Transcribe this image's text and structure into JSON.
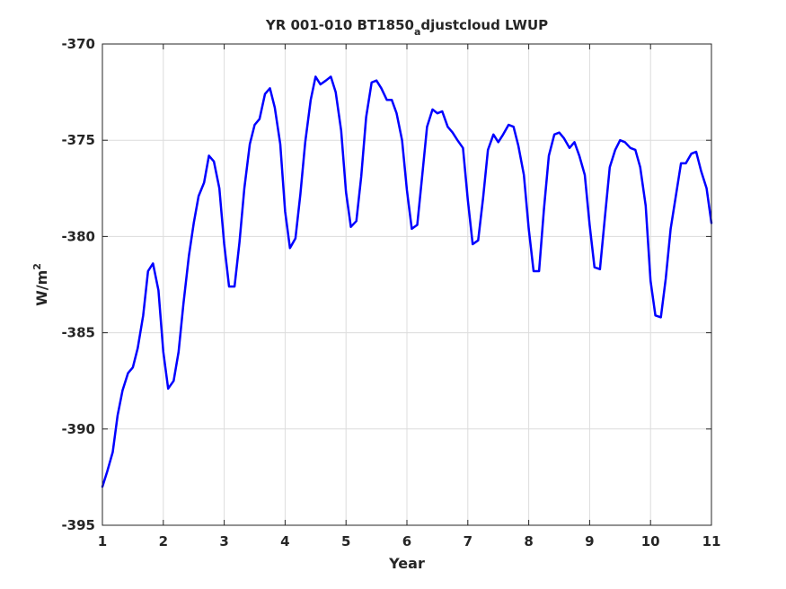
{
  "chart_data": {
    "type": "line",
    "title_main": "YR 001-010 BT1850",
    "title_sub": "a",
    "title_rest": "djustcloud LWUP",
    "xlabel": "Year",
    "ylabel_base": "W/m",
    "ylabel_sup": "2",
    "xlim": [
      1,
      11
    ],
    "ylim": [
      -395,
      -370
    ],
    "xticks": [
      1,
      2,
      3,
      4,
      5,
      6,
      7,
      8,
      9,
      10,
      11
    ],
    "yticks": [
      -395,
      -390,
      -385,
      -380,
      -375,
      -370
    ],
    "grid": true,
    "series": [
      {
        "color": "#0000ff",
        "x": [
          1.0,
          1.08,
          1.17,
          1.25,
          1.33,
          1.42,
          1.5,
          1.58,
          1.67,
          1.75,
          1.83,
          1.92,
          2.0,
          2.08,
          2.17,
          2.25,
          2.33,
          2.42,
          2.5,
          2.58,
          2.67,
          2.75,
          2.83,
          2.92,
          3.0,
          3.08,
          3.17,
          3.25,
          3.33,
          3.42,
          3.5,
          3.58,
          3.67,
          3.75,
          3.83,
          3.92,
          4.0,
          4.08,
          4.17,
          4.25,
          4.33,
          4.42,
          4.5,
          4.58,
          4.67,
          4.75,
          4.83,
          4.92,
          5.0,
          5.08,
          5.17,
          5.25,
          5.33,
          5.42,
          5.5,
          5.58,
          5.67,
          5.75,
          5.83,
          5.92,
          6.0,
          6.08,
          6.17,
          6.25,
          6.33,
          6.42,
          6.5,
          6.58,
          6.67,
          6.75,
          6.83,
          6.92,
          7.0,
          7.08,
          7.17,
          7.25,
          7.33,
          7.42,
          7.5,
          7.58,
          7.67,
          7.75,
          7.83,
          7.92,
          8.0,
          8.08,
          8.17,
          8.25,
          8.33,
          8.42,
          8.5,
          8.58,
          8.67,
          8.75,
          8.83,
          8.92,
          9.0,
          9.08,
          9.17,
          9.25,
          9.33,
          9.42,
          9.5,
          9.58,
          9.67,
          9.75,
          9.83,
          9.92,
          10.0,
          10.08,
          10.17,
          10.25,
          10.33,
          10.42,
          10.5,
          10.58,
          10.67,
          10.75,
          10.83,
          10.92,
          11.0
        ],
        "y": [
          -393.0,
          -392.2,
          -391.2,
          -389.3,
          -388.0,
          -387.1,
          -386.8,
          -385.8,
          -384.1,
          -381.8,
          -381.4,
          -382.8,
          -386.0,
          -387.9,
          -387.5,
          -386.0,
          -383.5,
          -381.0,
          -379.3,
          -377.9,
          -377.2,
          -375.8,
          -376.1,
          -377.5,
          -380.4,
          -382.6,
          -382.6,
          -380.3,
          -377.5,
          -375.2,
          -374.2,
          -373.9,
          -372.6,
          -372.3,
          -373.3,
          -375.2,
          -378.7,
          -380.6,
          -380.1,
          -377.8,
          -375.1,
          -372.9,
          -371.7,
          -372.1,
          -371.9,
          -371.7,
          -372.5,
          -374.5,
          -377.7,
          -379.5,
          -379.2,
          -376.9,
          -373.8,
          -372.0,
          -371.9,
          -372.3,
          -372.9,
          -372.9,
          -373.6,
          -375.0,
          -377.6,
          -379.6,
          -379.4,
          -376.9,
          -374.3,
          -373.4,
          -373.6,
          -373.5,
          -374.3,
          -374.6,
          -375.0,
          -375.4,
          -378.1,
          -380.4,
          -380.2,
          -378.0,
          -375.5,
          -374.7,
          -375.1,
          -374.7,
          -374.2,
          -374.3,
          -375.3,
          -376.8,
          -379.6,
          -381.8,
          -381.8,
          -378.6,
          -375.8,
          -374.7,
          -374.6,
          -374.9,
          -375.4,
          -375.1,
          -375.8,
          -376.8,
          -379.4,
          -381.6,
          -381.7,
          -379.0,
          -376.4,
          -375.5,
          -375.0,
          -375.1,
          -375.4,
          -375.5,
          -376.4,
          -378.4,
          -382.3,
          -384.1,
          -384.2,
          -382.2,
          -379.6,
          -377.8,
          -376.2,
          -376.2,
          -375.7,
          -375.6,
          -376.6,
          -377.5,
          -379.3
        ]
      }
    ]
  }
}
